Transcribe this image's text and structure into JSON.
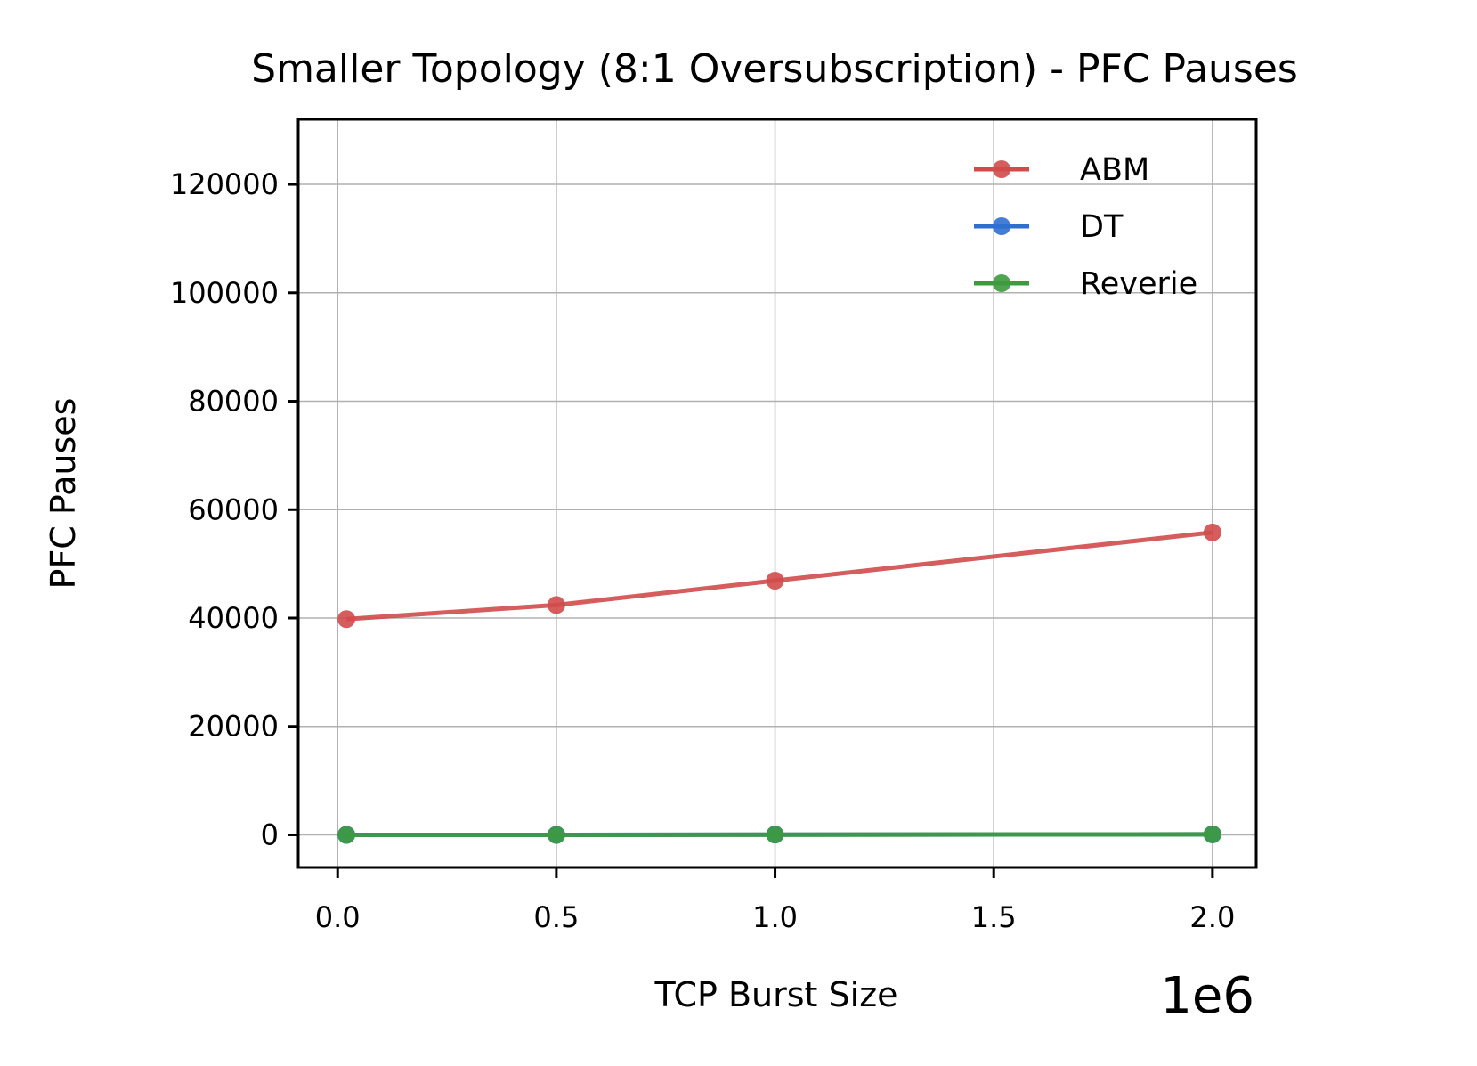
{
  "chart_data": {
    "type": "line",
    "title": "Smaller Topology (8:1 Oversubscription) - PFC Pauses",
    "xlabel": "TCP Burst Size",
    "ylabel": "PFC Pauses",
    "x_offset_label": "1e6",
    "x": [
      20000,
      500000,
      1000000,
      2000000
    ],
    "xlim": [
      -90000,
      2100000
    ],
    "ylim": [
      -6000,
      132000
    ],
    "xticks": [
      0,
      500000,
      1000000,
      1500000,
      2000000
    ],
    "xtick_labels": [
      "0.0",
      "0.5",
      "1.0",
      "1.5",
      "2.0"
    ],
    "yticks": [
      0,
      20000,
      40000,
      60000,
      80000,
      100000,
      120000
    ],
    "ytick_labels": [
      "0",
      "20000",
      "40000",
      "60000",
      "80000",
      "100000",
      "120000"
    ],
    "grid": true,
    "legend_position": "top-right",
    "series": [
      {
        "name": "ABM",
        "color": "#d14b4b",
        "values": [
          39800,
          42400,
          46900,
          55800
        ]
      },
      {
        "name": "DT",
        "color": "#2f6fd0",
        "values": [
          0,
          0,
          50,
          100
        ]
      },
      {
        "name": "Reverie",
        "color": "#3d9a3d",
        "values": [
          0,
          0,
          50,
          100
        ]
      }
    ]
  }
}
